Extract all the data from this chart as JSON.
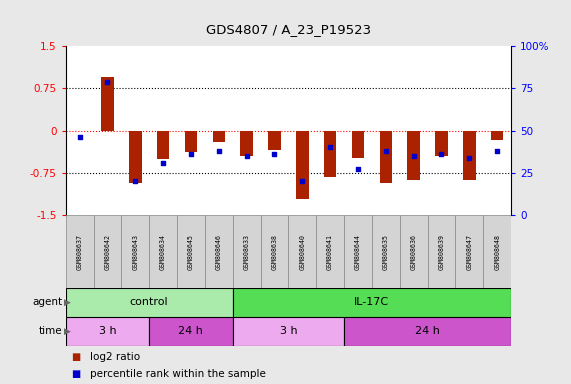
{
  "title": "GDS4807 / A_23_P19523",
  "samples": [
    "GSM808637",
    "GSM808642",
    "GSM808643",
    "GSM808634",
    "GSM808645",
    "GSM808646",
    "GSM808633",
    "GSM808638",
    "GSM808640",
    "GSM808641",
    "GSM808644",
    "GSM808635",
    "GSM808636",
    "GSM808639",
    "GSM808647",
    "GSM808648"
  ],
  "log2_ratio": [
    0.0,
    0.95,
    -0.93,
    -0.5,
    -0.38,
    -0.2,
    -0.45,
    -0.35,
    -1.22,
    -0.82,
    -0.48,
    -0.93,
    -0.87,
    -0.45,
    -0.88,
    -0.17
  ],
  "pct_rank": [
    46,
    79,
    20,
    31,
    36,
    38,
    35,
    36,
    20,
    40,
    27,
    38,
    35,
    36,
    34,
    38
  ],
  "bar_color": "#aa2200",
  "dot_color": "#0000cc",
  "yticks_left": [
    -1.5,
    -0.75,
    0,
    0.75,
    1.5
  ],
  "yticklabels_left": [
    "-1.5",
    "-0.75",
    "0",
    "0.75",
    "1.5"
  ],
  "yticks_right_pct": [
    0,
    25,
    50,
    75,
    100
  ],
  "yticklabels_right": [
    "0",
    "25",
    "50",
    "75",
    "100%"
  ],
  "agent_groups": [
    {
      "label": "control",
      "start": 0,
      "end": 6,
      "color": "#aaeaaa"
    },
    {
      "label": "IL-17C",
      "start": 6,
      "end": 16,
      "color": "#55dd55"
    }
  ],
  "time_groups": [
    {
      "label": "3 h",
      "start": 0,
      "end": 3,
      "color": "#eeaaee"
    },
    {
      "label": "24 h",
      "start": 3,
      "end": 6,
      "color": "#cc55cc"
    },
    {
      "label": "3 h",
      "start": 6,
      "end": 10,
      "color": "#eeaaee"
    },
    {
      "label": "24 h",
      "start": 10,
      "end": 16,
      "color": "#cc55cc"
    }
  ],
  "legend_items": [
    {
      "color": "#aa2200",
      "label": "log2 ratio"
    },
    {
      "color": "#0000cc",
      "label": "percentile rank within the sample"
    }
  ],
  "background_color": "#e8e8e8",
  "plot_bg": "#ffffff"
}
